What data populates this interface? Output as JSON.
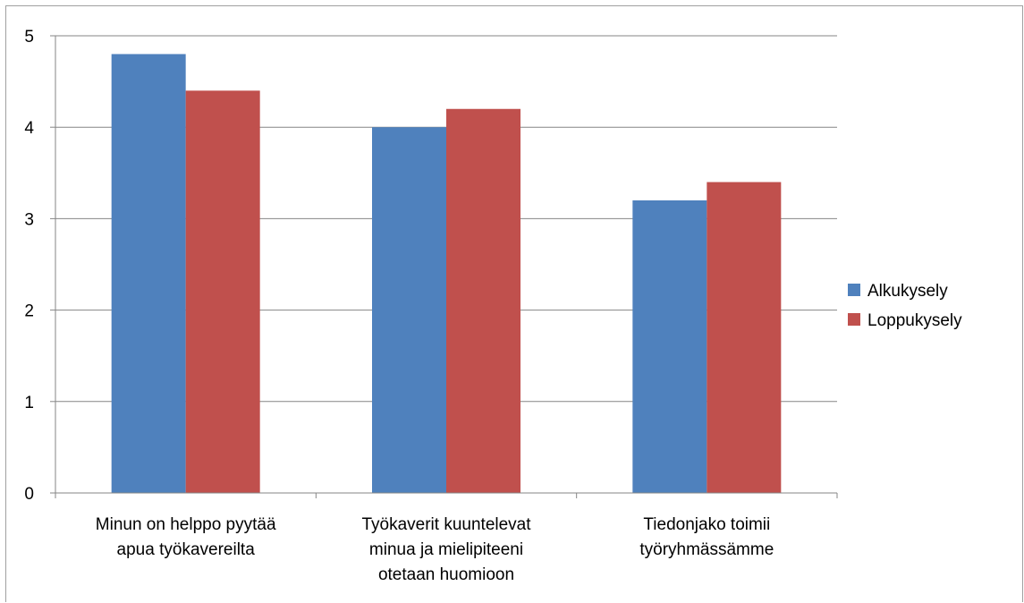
{
  "chart_data": {
    "type": "bar",
    "categories": [
      [
        "Minun on helppo pyytää",
        "apua työkavereilta"
      ],
      [
        "Työkaverit kuuntelevat",
        "minua ja mielipiteeni",
        "otetaan huomioon"
      ],
      [
        "Tiedonjako toimii",
        "työryhmässämme"
      ]
    ],
    "series": [
      {
        "name": "Alkukysely",
        "values": [
          4.8,
          4.0,
          3.2
        ],
        "color": "#4f81bd"
      },
      {
        "name": "Loppukysely",
        "values": [
          4.4,
          4.2,
          3.4
        ],
        "color": "#c0504d"
      }
    ],
    "ylim": [
      0,
      5
    ],
    "yticks": [
      "0",
      "1",
      "2",
      "3",
      "4",
      "5"
    ],
    "grid": true,
    "legend_position": "right"
  }
}
